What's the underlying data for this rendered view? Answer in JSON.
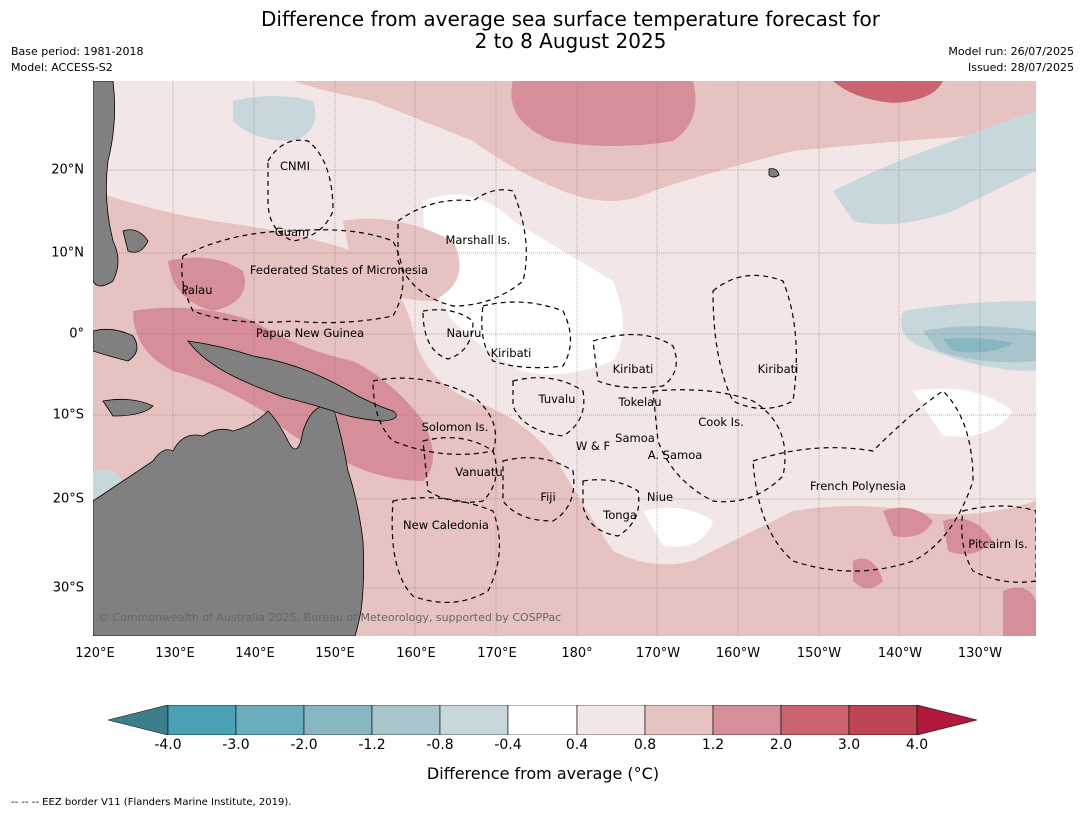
{
  "title": {
    "line1": "Difference from average sea surface temperature forecast for",
    "line2": "2 to 8 August 2025"
  },
  "meta": {
    "base_period": "Base period: 1981-2018",
    "model": "Model: ACCESS-S2",
    "model_run": "Model run: 26/07/2025",
    "issued": "Issued: 28/07/2025"
  },
  "map": {
    "longitude_labels": [
      "120°E",
      "130°E",
      "140°E",
      "150°E",
      "160°E",
      "170°E",
      "180°",
      "170°W",
      "160°W",
      "150°W",
      "140°W",
      "130°W"
    ],
    "latitude_labels": [
      "20°N",
      "10°N",
      "0°",
      "10°S",
      "20°S",
      "30°S"
    ],
    "copyright": "© Commonwealth of Australia 2025, Bureau of Meteorology, supported by COSPPac",
    "regions": [
      {
        "name": "CNMI"
      },
      {
        "name": "Guam"
      },
      {
        "name": "Marshall Is."
      },
      {
        "name": "Federated States of Micronesia"
      },
      {
        "name": "Palau"
      },
      {
        "name": "Nauru"
      },
      {
        "name": "Papua New Guinea"
      },
      {
        "name": "Kiribati"
      },
      {
        "name": "Kiribati"
      },
      {
        "name": "Kiribati"
      },
      {
        "name": "Tuvalu"
      },
      {
        "name": "Tokelau"
      },
      {
        "name": "Solomon Is."
      },
      {
        "name": "Cook Is."
      },
      {
        "name": "Samoa"
      },
      {
        "name": "W & F"
      },
      {
        "name": "A. Samoa"
      },
      {
        "name": "Vanuatu"
      },
      {
        "name": "Fiji"
      },
      {
        "name": "Niue"
      },
      {
        "name": "French Polynesia"
      },
      {
        "name": "Tonga"
      },
      {
        "name": "New Caledonia"
      },
      {
        "name": "Pitcairn Is."
      }
    ]
  },
  "colorbar": {
    "ticks": [
      "-4.0",
      "-3.0",
      "-2.0",
      "-1.2",
      "-0.8",
      "-0.4",
      "0.4",
      "0.8",
      "1.2",
      "2.0",
      "3.0",
      "4.0"
    ],
    "colors": [
      "#3b7f8c",
      "#4aa0b5",
      "#6aaebd",
      "#88b6c2",
      "#a8c5cc",
      "#c8d7dc",
      "#ffffff",
      "#f3e6e6",
      "#e6c2c1",
      "#d68f98",
      "#c96470",
      "#be4553",
      "#b3193c"
    ],
    "label": "Difference from average (°C)"
  },
  "footnote": "--  --  -- EEZ border V11 (Flanders Marine Institute, 2019)."
}
